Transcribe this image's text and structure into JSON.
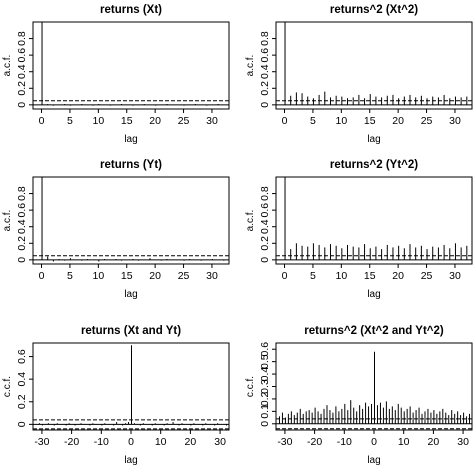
{
  "chart_data": [
    {
      "type": "bar",
      "title": "returns (Xt)",
      "xlabel": "lag",
      "ylabel": "a.c.f.",
      "xlim": [
        -1.5,
        33
      ],
      "ylim": [
        -0.05,
        1.0
      ],
      "xticks": [
        0,
        5,
        10,
        15,
        20,
        25,
        30
      ],
      "yticks": [
        0.0,
        0.2,
        0.4,
        0.6,
        0.8
      ],
      "confidence_band": 0.05,
      "x": [
        0,
        1,
        2,
        3,
        4,
        5,
        6,
        7,
        8,
        9,
        10,
        11,
        12,
        13,
        14,
        15,
        16,
        17,
        18,
        19,
        20,
        21,
        22,
        23,
        24,
        25,
        26,
        27,
        28,
        29,
        30,
        31,
        32
      ],
      "values": [
        1.0,
        0.01,
        -0.01,
        0.0,
        0.01,
        -0.01,
        0.0,
        0.01,
        0.0,
        -0.01,
        0.01,
        0.0,
        -0.01,
        0.0,
        0.01,
        0.0,
        -0.01,
        0.0,
        0.01,
        0.0,
        -0.01,
        0.0,
        0.01,
        0.0,
        0.0,
        -0.01,
        0.0,
        0.01,
        0.0,
        -0.01,
        0.0,
        0.01,
        0.0
      ]
    },
    {
      "type": "bar",
      "title": "returns^2 (Xt^2)",
      "xlabel": "lag",
      "ylabel": "a.c.f.",
      "xlim": [
        -1.5,
        33
      ],
      "ylim": [
        -0.05,
        1.0
      ],
      "xticks": [
        0,
        5,
        10,
        15,
        20,
        25,
        30
      ],
      "yticks": [
        0.0,
        0.2,
        0.4,
        0.6,
        0.8
      ],
      "confidence_band": 0.05,
      "x": [
        0,
        1,
        2,
        3,
        4,
        5,
        6,
        7,
        8,
        9,
        10,
        11,
        12,
        13,
        14,
        15,
        16,
        17,
        18,
        19,
        20,
        21,
        22,
        23,
        24,
        25,
        26,
        27,
        28,
        29,
        30,
        31,
        32
      ],
      "values": [
        1.0,
        0.11,
        0.15,
        0.14,
        0.1,
        0.08,
        0.12,
        0.16,
        0.09,
        0.11,
        0.1,
        0.08,
        0.09,
        0.12,
        0.08,
        0.13,
        0.1,
        0.09,
        0.11,
        0.12,
        0.08,
        0.1,
        0.12,
        0.09,
        0.11,
        0.08,
        0.1,
        0.09,
        0.12,
        0.08,
        0.1,
        0.09,
        0.1
      ]
    },
    {
      "type": "bar",
      "title": "returns (Yt)",
      "xlabel": "lag",
      "ylabel": "a.c.f.",
      "xlim": [
        -1.5,
        33
      ],
      "ylim": [
        -0.05,
        1.0
      ],
      "xticks": [
        0,
        5,
        10,
        15,
        20,
        25,
        30
      ],
      "yticks": [
        0.0,
        0.2,
        0.4,
        0.6,
        0.8
      ],
      "confidence_band": 0.05,
      "x": [
        0,
        1,
        2,
        3,
        4,
        5,
        6,
        7,
        8,
        9,
        10,
        11,
        12,
        13,
        14,
        15,
        16,
        17,
        18,
        19,
        20,
        21,
        22,
        23,
        24,
        25,
        26,
        27,
        28,
        29,
        30,
        31,
        32
      ],
      "values": [
        1.0,
        0.04,
        -0.02,
        0.01,
        -0.01,
        0.02,
        0.0,
        -0.01,
        0.01,
        0.0,
        -0.02,
        0.01,
        0.0,
        0.01,
        -0.01,
        0.0,
        0.01,
        -0.01,
        0.0,
        0.02,
        0.0,
        -0.01,
        0.01,
        0.0,
        0.0,
        -0.01,
        0.01,
        0.0,
        -0.01,
        0.0,
        0.01,
        0.0,
        -0.01
      ]
    },
    {
      "type": "bar",
      "title": "returns^2 (Yt^2)",
      "xlabel": "lag",
      "ylabel": "a.c.f.",
      "xlim": [
        -1.5,
        33
      ],
      "ylim": [
        -0.05,
        1.0
      ],
      "xticks": [
        0,
        5,
        10,
        15,
        20,
        25,
        30
      ],
      "yticks": [
        0.0,
        0.2,
        0.4,
        0.6,
        0.8
      ],
      "confidence_band": 0.05,
      "x": [
        0,
        1,
        2,
        3,
        4,
        5,
        6,
        7,
        8,
        9,
        10,
        11,
        12,
        13,
        14,
        15,
        16,
        17,
        18,
        19,
        20,
        21,
        22,
        23,
        24,
        25,
        26,
        27,
        28,
        29,
        30,
        31,
        32
      ],
      "values": [
        1.0,
        0.13,
        0.2,
        0.17,
        0.16,
        0.2,
        0.18,
        0.15,
        0.19,
        0.17,
        0.14,
        0.18,
        0.16,
        0.15,
        0.19,
        0.14,
        0.16,
        0.13,
        0.18,
        0.15,
        0.17,
        0.14,
        0.19,
        0.15,
        0.17,
        0.13,
        0.16,
        0.15,
        0.18,
        0.14,
        0.2,
        0.15,
        0.17
      ]
    },
    {
      "type": "bar",
      "title": "returns (Xt and Yt)",
      "xlabel": "lag",
      "ylabel": "c.c.f.",
      "xlim": [
        -33,
        33
      ],
      "ylim": [
        -0.05,
        0.72
      ],
      "xticks": [
        -30,
        -20,
        -10,
        0,
        10,
        20,
        30
      ],
      "yticks": [
        0.0,
        0.2,
        0.4,
        0.6
      ],
      "confidence_band": 0.04,
      "x": [
        -32,
        -31,
        -30,
        -29,
        -28,
        -27,
        -26,
        -25,
        -24,
        -23,
        -22,
        -21,
        -20,
        -19,
        -18,
        -17,
        -16,
        -15,
        -14,
        -13,
        -12,
        -11,
        -10,
        -9,
        -8,
        -7,
        -6,
        -5,
        -4,
        -3,
        -2,
        -1,
        0,
        1,
        2,
        3,
        4,
        5,
        6,
        7,
        8,
        9,
        10,
        11,
        12,
        13,
        14,
        15,
        16,
        17,
        18,
        19,
        20,
        21,
        22,
        23,
        24,
        25,
        26,
        27,
        28,
        29,
        30,
        31,
        32
      ],
      "values": [
        0.0,
        0.01,
        -0.01,
        0.0,
        0.01,
        0.0,
        -0.01,
        0.01,
        0.0,
        0.0,
        -0.01,
        0.01,
        0.0,
        -0.01,
        0.0,
        0.01,
        0.0,
        0.0,
        -0.01,
        0.01,
        0.0,
        0.0,
        -0.01,
        0.01,
        0.0,
        0.0,
        -0.01,
        0.02,
        0.0,
        -0.01,
        0.01,
        0.02,
        0.7,
        0.01,
        0.0,
        -0.01,
        0.01,
        0.0,
        0.0,
        -0.01,
        0.01,
        0.0,
        0.0,
        -0.01,
        0.01,
        0.0,
        0.02,
        0.0,
        -0.01,
        0.01,
        0.0,
        0.0,
        -0.01,
        0.01,
        0.0,
        0.0,
        -0.01,
        0.01,
        0.0,
        0.0,
        -0.01,
        0.01,
        0.0,
        0.0,
        -0.01
      ]
    },
    {
      "type": "bar",
      "title": "returns^2 (Xt^2 and Yt^2)",
      "xlabel": "lag",
      "ylabel": "c.c.f.",
      "xlim": [
        -33,
        33
      ],
      "ylim": [
        -0.05,
        0.65
      ],
      "xticks": [
        -30,
        -20,
        -10,
        0,
        10,
        20,
        30
      ],
      "yticks": [
        0.0,
        0.1,
        0.2,
        0.3,
        0.4,
        0.5,
        0.6
      ],
      "confidence_band": 0.04,
      "x": [
        -32,
        -31,
        -30,
        -29,
        -28,
        -27,
        -26,
        -25,
        -24,
        -23,
        -22,
        -21,
        -20,
        -19,
        -18,
        -17,
        -16,
        -15,
        -14,
        -13,
        -12,
        -11,
        -10,
        -9,
        -8,
        -7,
        -6,
        -5,
        -4,
        -3,
        -2,
        -1,
        0,
        1,
        2,
        3,
        4,
        5,
        6,
        7,
        8,
        9,
        10,
        11,
        12,
        13,
        14,
        15,
        16,
        17,
        18,
        19,
        20,
        21,
        22,
        23,
        24,
        25,
        26,
        27,
        28,
        29,
        30,
        31,
        32
      ],
      "values": [
        0.06,
        0.09,
        0.05,
        0.08,
        0.1,
        0.07,
        0.09,
        0.12,
        0.08,
        0.1,
        0.11,
        0.09,
        0.13,
        0.1,
        0.08,
        0.12,
        0.15,
        0.11,
        0.09,
        0.14,
        0.1,
        0.12,
        0.16,
        0.11,
        0.19,
        0.13,
        0.1,
        0.15,
        0.12,
        0.17,
        0.14,
        0.16,
        0.58,
        0.15,
        0.17,
        0.13,
        0.18,
        0.12,
        0.14,
        0.11,
        0.16,
        0.13,
        0.1,
        0.12,
        0.14,
        0.09,
        0.11,
        0.13,
        0.08,
        0.1,
        0.12,
        0.09,
        0.11,
        0.08,
        0.1,
        0.12,
        0.09,
        0.07,
        0.11,
        0.08,
        0.1,
        0.07,
        0.09,
        0.06,
        0.08
      ]
    }
  ]
}
